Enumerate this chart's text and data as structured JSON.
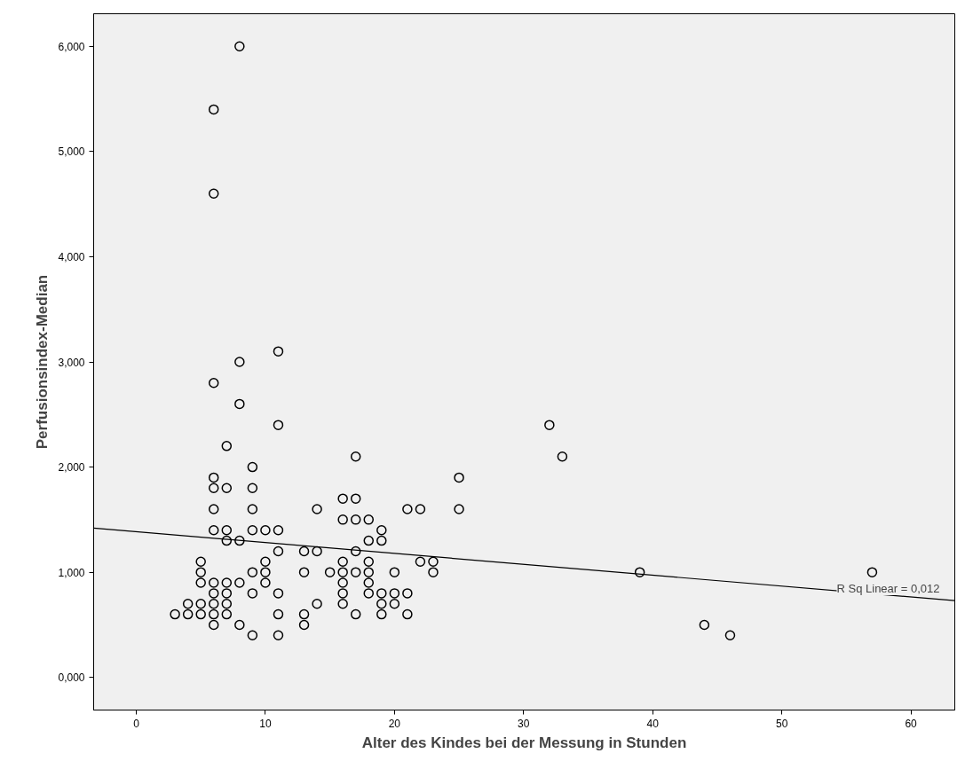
{
  "chart_data": {
    "type": "scatter",
    "xlabel": "Alter des Kindes bei der Messung in Stunden",
    "ylabel": "Perfusionsindex-Median",
    "xlim": [
      -3.3,
      63.4
    ],
    "ylim": [
      -0.31,
      6.31
    ],
    "xticks": [
      0,
      10,
      20,
      30,
      40,
      50,
      60
    ],
    "yticks": [
      {
        "value": 0,
        "label": "0,000"
      },
      {
        "value": 1,
        "label": "1,000"
      },
      {
        "value": 2,
        "label": "2,000"
      },
      {
        "value": 3,
        "label": "3,000"
      },
      {
        "value": 4,
        "label": "4,000"
      },
      {
        "value": 5,
        "label": "5,000"
      },
      {
        "value": 6,
        "label": "6,000"
      }
    ],
    "annotations": [
      "R Sq Linear = 0,012"
    ],
    "series": [
      {
        "marker": "circle",
        "color": "#000000",
        "x": [
          3,
          4,
          4,
          5,
          5,
          5,
          5,
          5,
          6,
          6,
          6,
          6,
          6,
          6,
          6,
          6,
          6,
          6,
          6,
          6,
          7,
          7,
          7,
          7,
          7,
          7,
          7,
          7,
          8,
          8,
          8,
          8,
          8,
          8,
          9,
          9,
          9,
          9,
          9,
          9,
          9,
          10,
          10,
          10,
          10,
          11,
          11,
          11,
          11,
          11,
          11,
          11,
          13,
          13,
          13,
          13,
          14,
          14,
          14,
          15,
          16,
          16,
          16,
          16,
          16,
          16,
          16,
          17,
          17,
          17,
          17,
          17,
          17,
          18,
          18,
          18,
          18,
          18,
          18,
          19,
          19,
          19,
          19,
          19,
          20,
          20,
          20,
          21,
          21,
          21,
          22,
          22,
          23,
          23,
          25,
          25,
          32,
          33,
          39,
          44,
          46,
          57
        ],
        "values": [
          0.6,
          0.6,
          0.7,
          0.6,
          0.7,
          0.9,
          1.0,
          1.1,
          0.5,
          0.6,
          0.7,
          0.8,
          0.9,
          1.4,
          1.6,
          1.8,
          1.9,
          2.8,
          4.6,
          5.4,
          0.6,
          0.7,
          0.8,
          0.9,
          1.3,
          1.4,
          1.8,
          2.2,
          0.5,
          0.9,
          1.3,
          2.6,
          3.0,
          6.0,
          0.4,
          0.8,
          1.0,
          1.4,
          1.6,
          1.8,
          2.0,
          0.9,
          1.0,
          1.1,
          1.4,
          0.4,
          0.6,
          0.8,
          1.2,
          1.4,
          2.4,
          3.1,
          0.5,
          0.6,
          1.0,
          1.2,
          0.7,
          1.2,
          1.6,
          1.0,
          0.7,
          0.8,
          0.9,
          1.0,
          1.1,
          1.5,
          1.7,
          0.6,
          1.0,
          1.2,
          1.5,
          1.7,
          2.1,
          0.8,
          0.9,
          1.0,
          1.1,
          1.3,
          1.5,
          0.6,
          0.7,
          0.8,
          1.3,
          1.4,
          0.7,
          0.8,
          1.0,
          0.6,
          0.8,
          1.6,
          1.1,
          1.6,
          1.0,
          1.1,
          1.6,
          1.9,
          2.4,
          2.1,
          1.0,
          0.5,
          0.4,
          1.0
        ]
      },
      {
        "type": "line",
        "marker": "none",
        "color": "#000000",
        "x": [
          -3.3,
          63.4
        ],
        "values": [
          1.42,
          0.73
        ]
      }
    ]
  }
}
